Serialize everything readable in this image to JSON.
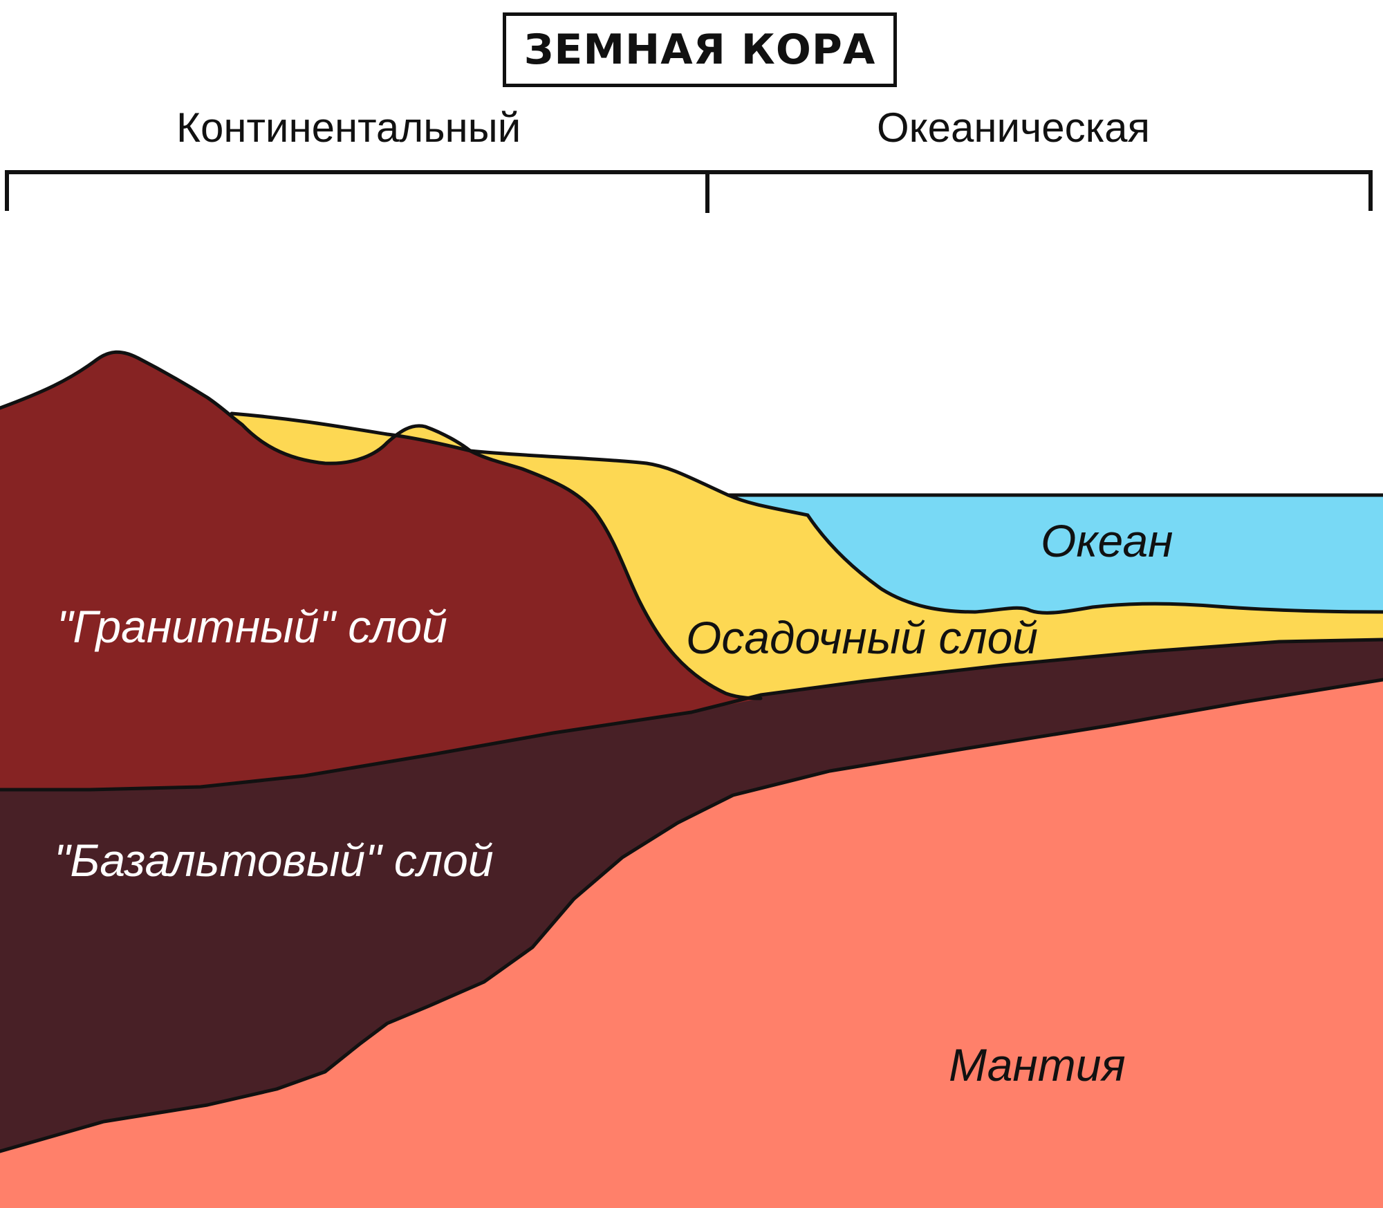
{
  "title": "ЗЕМНАЯ КОРА",
  "sections": {
    "continental": "Континентальный",
    "oceanic": "Океаническая"
  },
  "layers": {
    "granite": "\"Гранитный\" слой",
    "basalt": "\"Базальтовый\" слой",
    "sediment": "Осадочный слой",
    "ocean": "Океан",
    "mantle": "Мантия"
  },
  "colors": {
    "granite": "#862323",
    "basalt": "#482026",
    "sediment": "#FDD853",
    "ocean": "#78D9F5",
    "mantle": "#FF806A",
    "outline": "#111111"
  }
}
